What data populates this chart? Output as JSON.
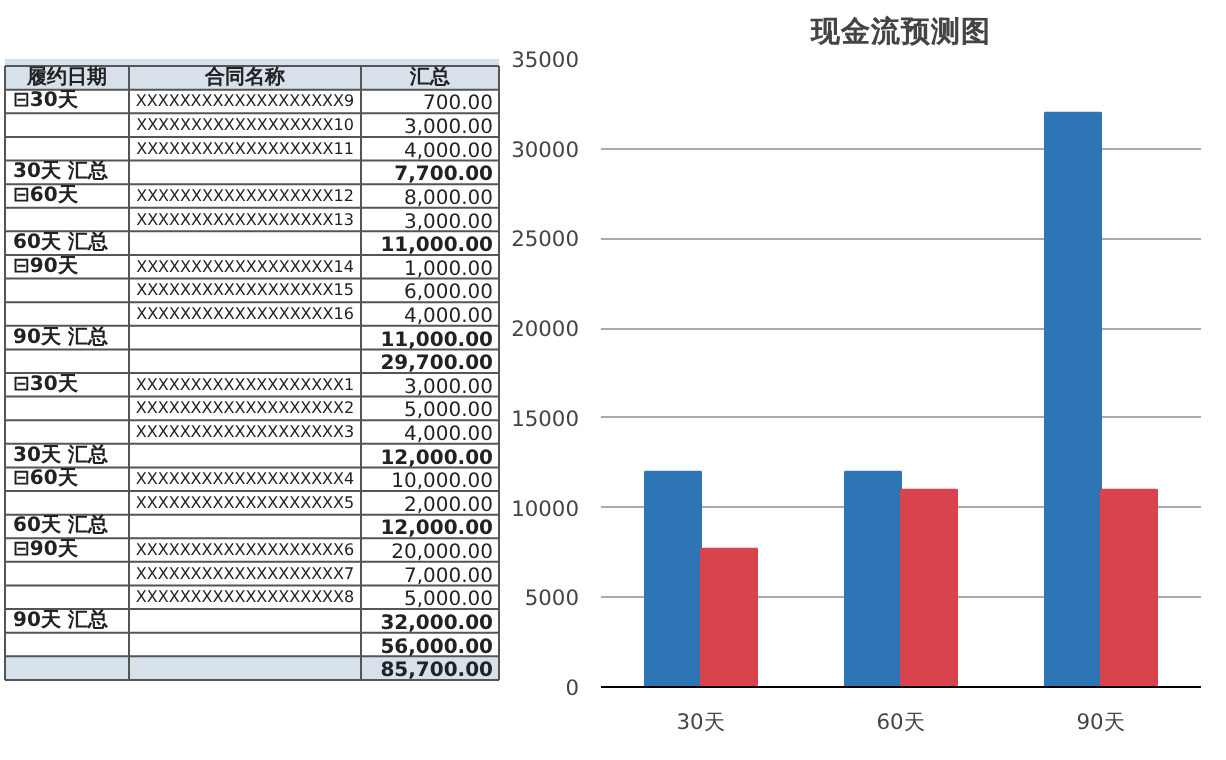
{
  "chart_data": [
    {
      "type": "other",
      "categories": [
        "履约日期",
        "合同名称",
        "汇总"
      ],
      "cell_labels": [
        [
          "⊟30天",
          "XXXXXXXXXXXXXXXXXXX9",
          "700.00"
        ],
        [
          null,
          "XXXXXXXXXXXXXXXXXX10",
          "3,000.00"
        ],
        [
          null,
          "XXXXXXXXXXXXXXXXXX11",
          "4,000.00"
        ],
        [
          "30天 汇总",
          null,
          "7,700.00"
        ],
        [
          "⊟60天",
          "XXXXXXXXXXXXXXXXXX12",
          "8,000.00"
        ],
        [
          null,
          "XXXXXXXXXXXXXXXXXX13",
          "3,000.00"
        ],
        [
          "60天 汇总",
          null,
          "11,000.00"
        ],
        [
          "⊟90天",
          "XXXXXXXXXXXXXXXXXX14",
          "1,000.00"
        ],
        [
          null,
          "XXXXXXXXXXXXXXXXXX15",
          "6,000.00"
        ],
        [
          null,
          "XXXXXXXXXXXXXXXXXX16",
          "4,000.00"
        ],
        [
          "90天 汇总",
          null,
          "11,000.00"
        ],
        [
          null,
          null,
          "29,700.00"
        ],
        [
          "⊟30天",
          "XXXXXXXXXXXXXXXXXXX1",
          "3,000.00"
        ],
        [
          null,
          "XXXXXXXXXXXXXXXXXXX2",
          "5,000.00"
        ],
        [
          null,
          "XXXXXXXXXXXXXXXXXXX3",
          "4,000.00"
        ],
        [
          "30天 汇总",
          null,
          "12,000.00"
        ],
        [
          "⊟60天",
          "XXXXXXXXXXXXXXXXXXX4",
          "10,000.00"
        ],
        [
          null,
          "XXXXXXXXXXXXXXXXXXX5",
          "2,000.00"
        ],
        [
          "60天 汇总",
          null,
          "12,000.00"
        ],
        [
          "⊟90天",
          "XXXXXXXXXXXXXXXXXXX6",
          "20,000.00"
        ],
        [
          null,
          "XXXXXXXXXXXXXXXXXXX7",
          "7,000.00"
        ],
        [
          null,
          "XXXXXXXXXXXXXXXXXXX8",
          "5,000.00"
        ],
        [
          "90天 汇总",
          null,
          "32,000.00"
        ],
        [
          null,
          null,
          "56,000.00"
        ],
        [
          null,
          null,
          "85,700.00"
        ]
      ]
    },
    {
      "type": "bar",
      "title": "现金流预测图",
      "categories": [
        "30天",
        "60天",
        "90天"
      ],
      "series": [
        {
          "color": "#2e75b6",
          "values": [
            12000,
            12000,
            32000
          ]
        },
        {
          "color": "#d9434e",
          "values": [
            7700,
            11000,
            11000
          ]
        }
      ],
      "ylim": [
        0,
        35000
      ],
      "yticks": [
        0,
        5000,
        10000,
        15000,
        20000,
        25000,
        30000,
        35000
      ],
      "grid": "y"
    }
  ]
}
